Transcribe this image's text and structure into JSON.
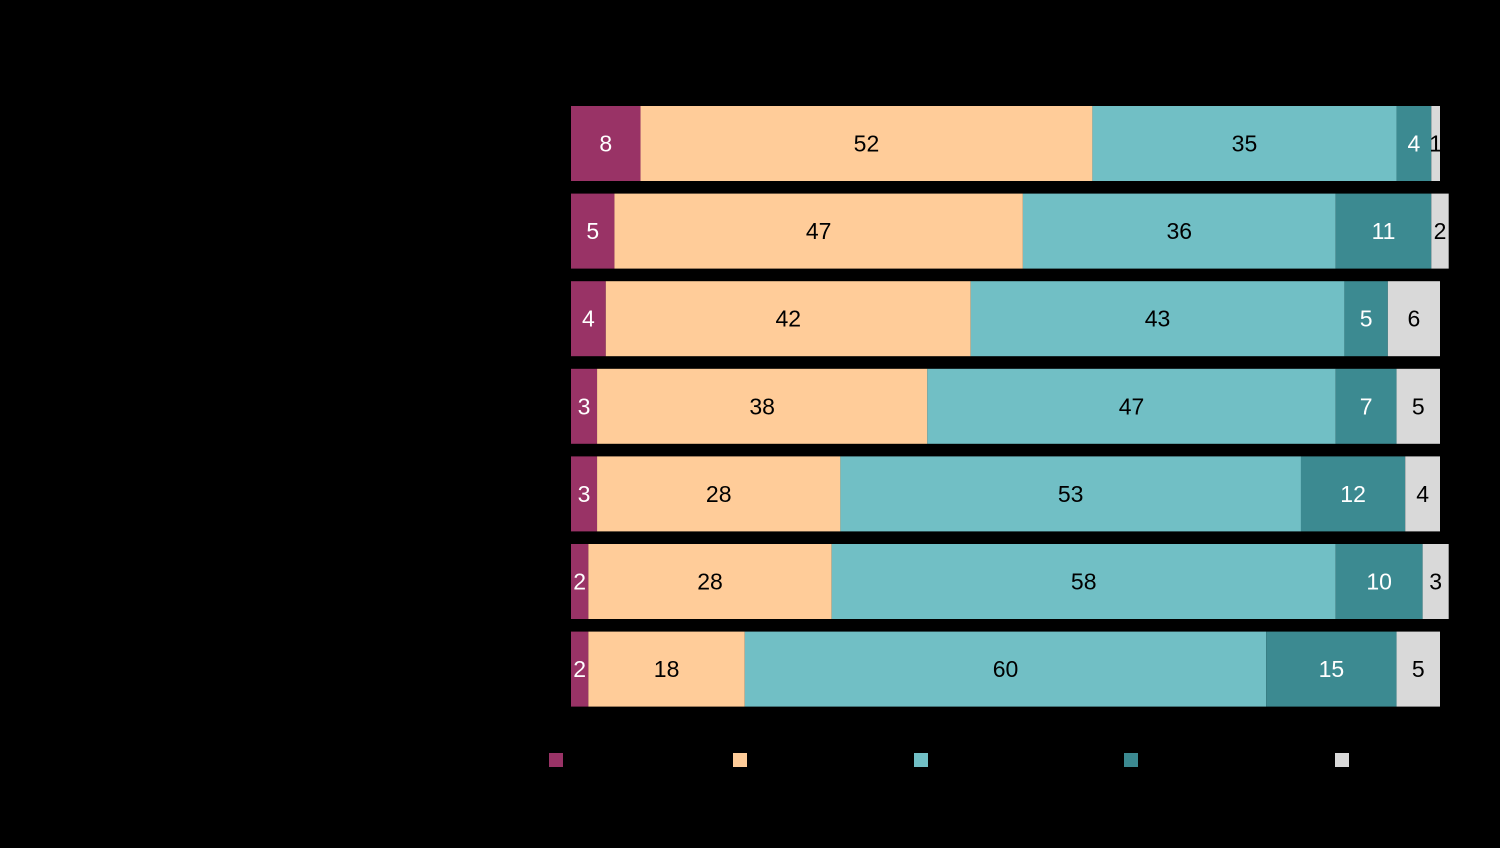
{
  "chart_data": {
    "type": "bar",
    "orientation": "horizontal",
    "stacked": true,
    "categories": [
      "",
      "",
      "",
      "",
      "",
      "",
      ""
    ],
    "series": [
      {
        "name": "",
        "color": "#993366",
        "label_color": "#ffffff",
        "values": [
          8,
          5,
          4,
          3,
          3,
          2,
          2
        ]
      },
      {
        "name": "",
        "color": "#FFCC99",
        "label_color": "#000000",
        "values": [
          52,
          47,
          42,
          38,
          28,
          28,
          18
        ]
      },
      {
        "name": "",
        "color": "#71BFC5",
        "label_color": "#000000",
        "values": [
          35,
          36,
          43,
          47,
          53,
          58,
          60
        ]
      },
      {
        "name": "",
        "color": "#3C8A91",
        "label_color": "#ffffff",
        "values": [
          4,
          11,
          5,
          7,
          12,
          10,
          15
        ]
      },
      {
        "name": "",
        "color": "#D9D9D9",
        "label_color": "#000000",
        "values": [
          1,
          2,
          6,
          5,
          4,
          3,
          5
        ]
      }
    ],
    "xlim": [
      0,
      100
    ],
    "legend_position": "bottom",
    "grid": false
  }
}
